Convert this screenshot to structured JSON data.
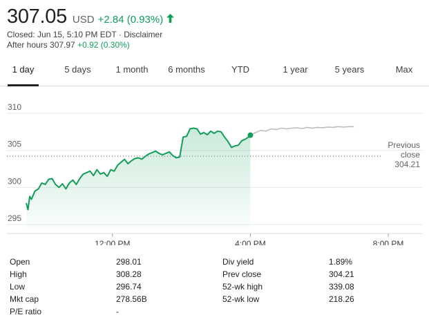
{
  "quote": {
    "price": "307.05",
    "currency": "USD",
    "change": "+2.84 (0.93%)",
    "closed_text": "Closed: Jun 15, 5:10 PM EDT",
    "separator": " · ",
    "disclaimer": "Disclaimer",
    "after_hours_label": "After hours 307.97",
    "after_hours_change": "+0.92 (0.30%)",
    "accent_color": "#0f9d58",
    "trend_icon": "arrow-up-icon"
  },
  "tabs": [
    "1 day",
    "5 days",
    "1 month",
    "6 months",
    "YTD",
    "1 year",
    "5 years",
    "Max"
  ],
  "active_tab": "1 day",
  "chart_data": {
    "type": "line",
    "y_ticks": [
      "310",
      "305",
      "300",
      "295"
    ],
    "ylim": [
      295,
      310
    ],
    "x_ticks": [
      "12:00 PM",
      "4:00 PM",
      "8:00 PM"
    ],
    "x_range_hours": [
      9.5,
      21
    ],
    "x_tick_hours": [
      12,
      16,
      20
    ],
    "previous_close": 304.21,
    "previous_close_label_lines": [
      "Previous",
      "close",
      "304.21"
    ],
    "line_color": "#0f9d58",
    "after_hours_color": "#bdbdbd",
    "series": [
      {
        "session": "regular",
        "x": [
          9.5,
          9.55,
          9.6,
          9.65,
          9.75,
          9.85,
          9.95,
          10.05,
          10.15,
          10.25,
          10.35,
          10.45,
          10.55,
          10.65,
          10.75,
          10.85,
          10.95,
          11.05,
          11.15,
          11.25,
          11.35,
          11.45,
          11.55,
          11.65,
          11.75,
          11.85,
          11.95,
          12.05,
          12.15,
          12.25,
          12.35,
          12.45,
          12.55,
          12.65,
          12.75,
          12.85,
          12.95,
          13.05,
          13.15,
          13.25,
          13.35,
          13.45,
          13.55,
          13.65,
          13.75,
          13.85,
          13.95,
          14.05,
          14.15,
          14.25,
          14.35,
          14.45,
          14.55,
          14.65,
          14.75,
          14.85,
          14.95,
          15.05,
          15.15,
          15.25,
          15.35,
          15.45,
          15.55,
          15.65,
          15.75,
          15.85,
          15.95,
          16.0
        ],
        "y": [
          297.9,
          297.0,
          298.8,
          298.4,
          299.5,
          299.8,
          300.6,
          300.4,
          301.1,
          301.2,
          300.4,
          300.0,
          300.5,
          299.8,
          300.6,
          301.0,
          300.4,
          301.2,
          301.8,
          302.0,
          302.2,
          301.6,
          302.4,
          301.8,
          302.0,
          301.5,
          302.4,
          302.2,
          303.0,
          303.4,
          303.8,
          303.2,
          303.6,
          303.9,
          304.0,
          303.8,
          304.2,
          304.5,
          304.7,
          304.9,
          304.6,
          304.4,
          304.6,
          304.8,
          304.3,
          304.0,
          304.1,
          306.8,
          306.9,
          307.9,
          308.0,
          307.9,
          307.2,
          307.4,
          307.1,
          307.6,
          307.3,
          307.6,
          307.5,
          306.8,
          306.2,
          305.4,
          305.6,
          305.7,
          306.3,
          306.5,
          306.8,
          307.05
        ]
      },
      {
        "session": "after_hours",
        "x": [
          16.0,
          16.15,
          16.3,
          16.45,
          16.6,
          16.75,
          16.9,
          17.05,
          17.2,
          17.35,
          17.5,
          17.65,
          17.8,
          17.95,
          18.1,
          18.25,
          18.4,
          18.55,
          18.7,
          18.85,
          19.0
        ],
        "y": [
          307.05,
          307.4,
          307.7,
          307.6,
          307.9,
          307.8,
          308.0,
          307.9,
          308.0,
          308.05,
          307.95,
          308.1,
          308.0,
          308.1,
          308.05,
          308.15,
          308.1,
          308.2,
          308.15,
          308.2,
          308.2
        ]
      }
    ]
  },
  "stats": {
    "left": [
      {
        "label": "Open",
        "value": "298.01"
      },
      {
        "label": "High",
        "value": "308.28"
      },
      {
        "label": "Low",
        "value": "296.74"
      },
      {
        "label": "Mkt cap",
        "value": "278.56B"
      },
      {
        "label": "P/E ratio",
        "value": "-"
      }
    ],
    "right": [
      {
        "label": "Div yield",
        "value": "1.89%"
      },
      {
        "label": "Prev close",
        "value": "304.21"
      },
      {
        "label": "52-wk high",
        "value": "339.08"
      },
      {
        "label": "52-wk low",
        "value": "218.26"
      }
    ]
  }
}
